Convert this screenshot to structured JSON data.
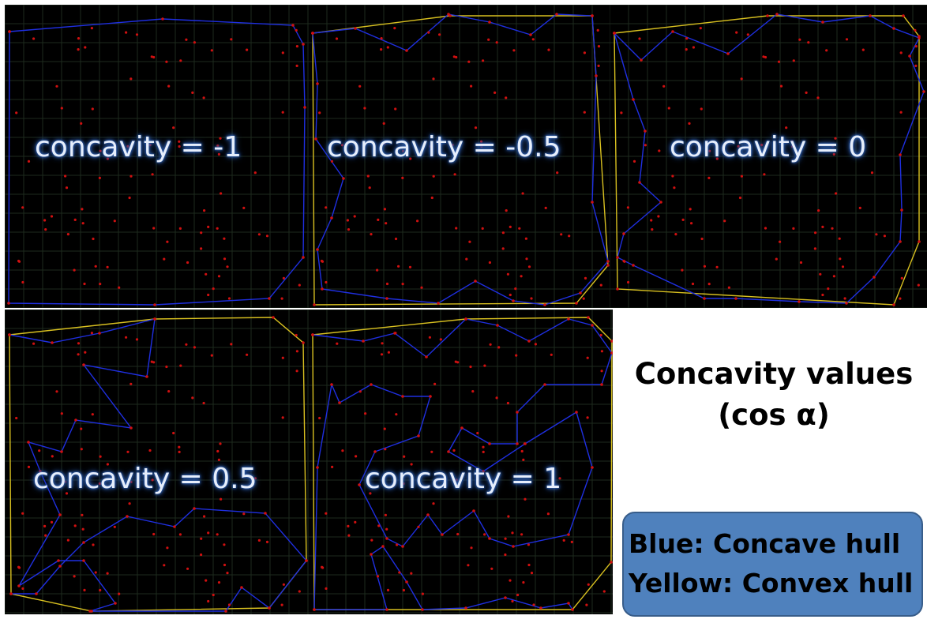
{
  "panels": [
    {
      "id": "p1",
      "label": "concavity = -1"
    },
    {
      "id": "p2",
      "label": "concavity = -0.5"
    },
    {
      "id": "p3",
      "label": "concavity = 0"
    },
    {
      "id": "p4",
      "label": "concavity = 0.5"
    },
    {
      "id": "p5",
      "label": "concavity = 1"
    }
  ],
  "title": {
    "line1": "Concavity values",
    "line2": "(cos α)"
  },
  "legend": {
    "blue": "Blue: Concave hull",
    "yellow": "Yellow: Convex hull"
  },
  "colors": {
    "background": "#000000",
    "grid": "#1e2a1e",
    "points": "#d01010",
    "concave_hull": "#1f2fe0",
    "convex_hull": "#d8c020",
    "legend_fill": "#4f81bd"
  }
}
